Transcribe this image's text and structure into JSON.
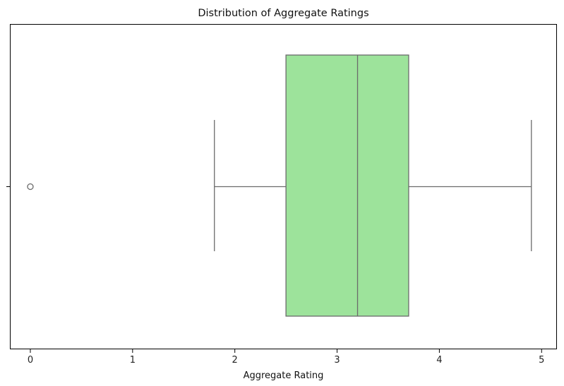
{
  "chart_data": {
    "type": "box",
    "title": "Distribution of Aggregate Ratings",
    "xlabel": "Aggregate Rating",
    "ylabel": "",
    "xlim": [
      -0.2,
      5.15
    ],
    "xticks": [
      0,
      1,
      2,
      3,
      4,
      5
    ],
    "grid": false,
    "orientation": "horizontal",
    "box": {
      "q1": 2.5,
      "median": 3.2,
      "q3": 3.7,
      "whisker_low": 1.8,
      "whisker_high": 4.9,
      "outliers": [
        0
      ]
    },
    "colors": {
      "box_fill": "#9de39b",
      "line": "#6b6b6b",
      "axes": "#000000"
    }
  }
}
